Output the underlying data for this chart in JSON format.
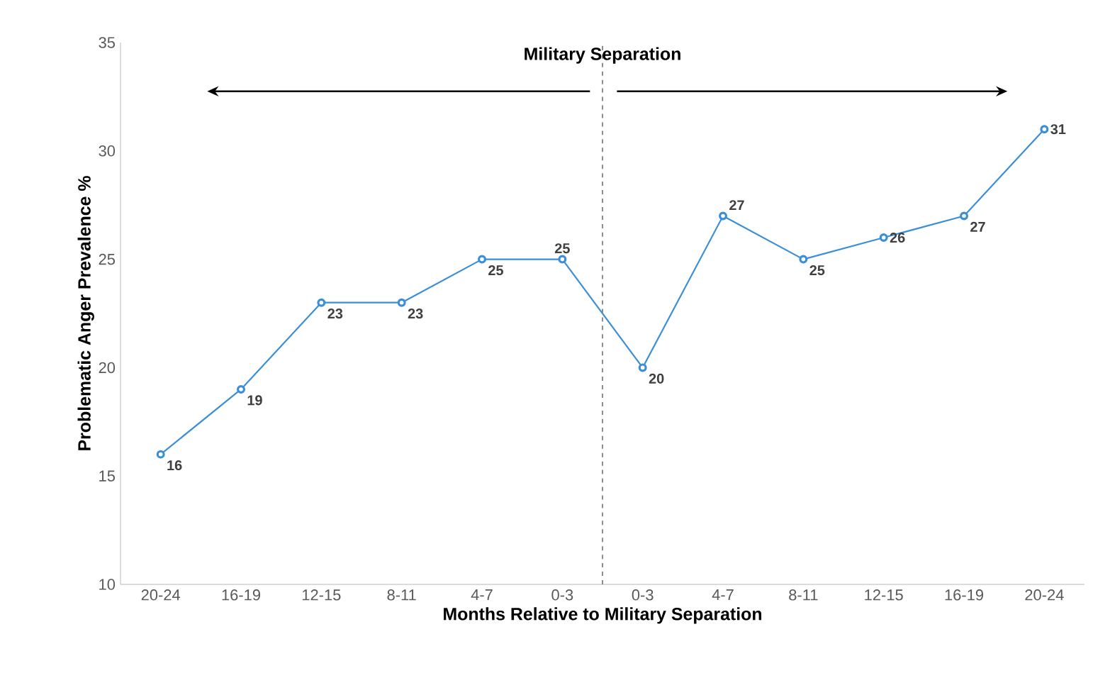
{
  "chart_data": {
    "type": "line",
    "title": "Military Separation",
    "xlabel": "Months Relative to Military Separation",
    "ylabel": "Problematic Anger Prevalence %",
    "categories": [
      "20-24",
      "16-19",
      "12-15",
      "8-11",
      "4-7",
      "0-3",
      "0-3",
      "4-7",
      "8-11",
      "12-15",
      "16-19",
      "20-24"
    ],
    "series": [
      {
        "color": "#3a8fd8",
        "values": [
          16,
          19,
          23,
          23,
          25,
          25,
          20,
          27,
          25,
          26,
          27,
          31
        ]
      }
    ],
    "ylim": [
      10,
      35
    ],
    "yticks": [
      10,
      15,
      20,
      25,
      30,
      35
    ],
    "grid": false,
    "legend": false,
    "marker": "circle",
    "line_style": "solid",
    "data_labels": true
  }
}
